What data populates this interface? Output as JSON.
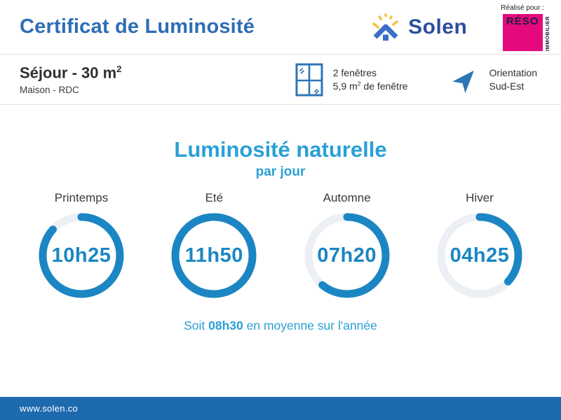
{
  "header": {
    "title": "Certificat de Luminosité",
    "solen_logo_text": "Solen",
    "realise_pour": "Réalisé pour :",
    "reso_line1": "RÉSO",
    "reso_vertical": "IMMOBILIER"
  },
  "room": {
    "name": "Séjour - 30 m",
    "name_sup": "2",
    "subtitle": "Maison - RDC"
  },
  "windows": {
    "line1": "2 fenêtres",
    "line2_pre": "5,9 m",
    "line2_sup": "2",
    "line2_post": " de fenêtre"
  },
  "orientation": {
    "line1": "Orientation",
    "line2": "Sud-Est"
  },
  "main": {
    "title": "Luminosité naturelle",
    "subtitle": "par jour",
    "summary_pre": "Soit ",
    "summary_value": "08h30",
    "summary_post": " en moyenne sur l'année"
  },
  "gauges": [
    {
      "season": "Printemps",
      "value": "10h25",
      "hours": 10.42
    },
    {
      "season": "Eté",
      "value": "11h50",
      "hours": 11.83
    },
    {
      "season": "Automne",
      "value": "07h20",
      "hours": 7.33
    },
    {
      "season": "Hiver",
      "value": "04h25",
      "hours": 4.42
    }
  ],
  "chart_data": {
    "type": "pie",
    "subtype": "donut_gauges",
    "title": "Luminosité naturelle",
    "subtitle": "par jour",
    "categories": [
      "Printemps",
      "Eté",
      "Automne",
      "Hiver"
    ],
    "labels": [
      "10h25",
      "11h50",
      "07h20",
      "04h25"
    ],
    "values_hours": [
      10.42,
      11.83,
      7.33,
      4.42
    ],
    "gauge_max_hours": 12,
    "average_label": "Soit 08h30 en moyenne sur l'année",
    "average_hours": 8.5
  },
  "footer": {
    "url": "www.solen.co"
  },
  "colors": {
    "title_blue": "#2d6db5",
    "cyan": "#2aa0d6",
    "gauge_blue": "#1b86c3",
    "gauge_track": "#eceff4",
    "footer_bg": "#1e6aaf",
    "magenta": "#e40a7e",
    "navy": "#2b4f9e",
    "yellow": "#f5c243",
    "icon_blue": "#2e75b6"
  }
}
